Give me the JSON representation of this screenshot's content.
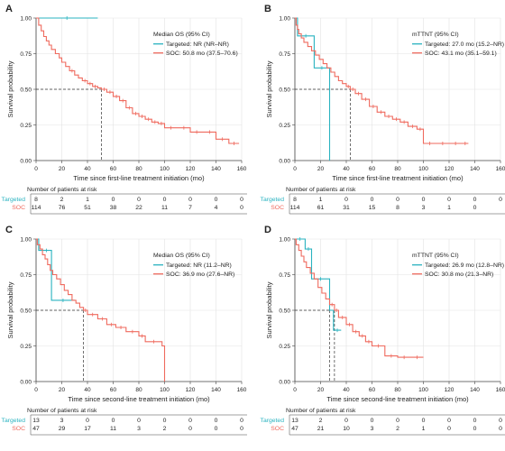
{
  "figure": {
    "risk_table_title": "Number of patients at risk",
    "colors": {
      "targeted": "#2ab3c0",
      "soc": "#ef6a5e",
      "grid": "#e3e3e3",
      "axis": "#444444",
      "text": "#222222",
      "median_line": "#333333"
    }
  },
  "chart_data": [
    {
      "panel": "A",
      "type": "line",
      "subtype": "kaplan-meier",
      "xlabel": "Time since first-line treatment initiation (mo)",
      "ylabel": "Survival probability",
      "xlim": [
        0,
        160
      ],
      "ylim": [
        0,
        1
      ],
      "x_ticks": [
        "0",
        "20",
        "40",
        "60",
        "80",
        "100",
        "120",
        "140",
        "160"
      ],
      "y_ticks": [
        "0.00",
        "0.25",
        "0.50",
        "0.75",
        "1.00"
      ],
      "legend_title": "Median OS (95% CI)",
      "legend_position": "top-right",
      "median_x": [
        50.8
      ],
      "series": [
        {
          "name": "Targeted: NR (NR–NR)",
          "color": "#2ab3c0",
          "x": [
            0,
            48
          ],
          "y": [
            1.0,
            1.0
          ]
        },
        {
          "name": "SOC: 50.8 mo (37.5–70.6)",
          "color": "#ef6a5e",
          "x": [
            0,
            2,
            4,
            6,
            8,
            10,
            12,
            15,
            18,
            20,
            23,
            26,
            30,
            33,
            36,
            40,
            44,
            48,
            50.8,
            55,
            60,
            65,
            70,
            75,
            80,
            85,
            90,
            95,
            100,
            110,
            120,
            130,
            140,
            150,
            158
          ],
          "y": [
            1.0,
            0.95,
            0.91,
            0.87,
            0.84,
            0.81,
            0.78,
            0.75,
            0.72,
            0.69,
            0.66,
            0.63,
            0.6,
            0.58,
            0.56,
            0.54,
            0.52,
            0.51,
            0.5,
            0.48,
            0.45,
            0.42,
            0.37,
            0.33,
            0.31,
            0.29,
            0.27,
            0.26,
            0.23,
            0.23,
            0.2,
            0.2,
            0.15,
            0.12,
            0.12
          ]
        }
      ],
      "risk_table": {
        "rows": [
          {
            "label": "Targeted",
            "color": "#2ab3c0",
            "values": [
              "8",
              "2",
              "1",
              "0",
              "0",
              "0",
              "0",
              "0",
              "0"
            ]
          },
          {
            "label": "SOC",
            "color": "#ef6a5e",
            "values": [
              "114",
              "76",
              "51",
              "38",
              "22",
              "11",
              "7",
              "4",
              "0"
            ]
          }
        ]
      }
    },
    {
      "panel": "B",
      "type": "line",
      "subtype": "kaplan-meier",
      "xlabel": "Time since first-line treatment initiation (mo)",
      "ylabel": "Survival probability",
      "xlim": [
        0,
        160
      ],
      "ylim": [
        0,
        1
      ],
      "x_ticks": [
        "0",
        "20",
        "40",
        "60",
        "80",
        "100",
        "120",
        "140",
        "160"
      ],
      "y_ticks": [
        "0.00",
        "0.25",
        "0.50",
        "0.75",
        "1.00"
      ],
      "legend_title": "mTTNT (95% CI)",
      "legend_position": "top-right",
      "median_x": [
        27.0,
        43.1
      ],
      "series": [
        {
          "name": "Targeted: 27.0 mo (15.2–NR)",
          "color": "#2ab3c0",
          "x": [
            0,
            2,
            15,
            27,
            27
          ],
          "y": [
            1.0,
            0.875,
            0.65,
            0.65,
            0.0
          ]
        },
        {
          "name": "SOC: 43.1 mo (35.1–59.1)",
          "color": "#ef6a5e",
          "x": [
            0,
            1,
            2,
            3,
            5,
            7,
            10,
            13,
            16,
            19,
            22,
            25,
            28,
            31,
            34,
            37,
            40,
            43.1,
            47,
            52,
            58,
            64,
            70,
            76,
            82,
            88,
            95,
            100,
            110,
            120,
            130,
            135
          ],
          "y": [
            1.0,
            0.95,
            0.92,
            0.89,
            0.86,
            0.83,
            0.8,
            0.77,
            0.74,
            0.71,
            0.68,
            0.65,
            0.62,
            0.59,
            0.56,
            0.54,
            0.52,
            0.5,
            0.47,
            0.43,
            0.38,
            0.34,
            0.31,
            0.29,
            0.27,
            0.24,
            0.22,
            0.12,
            0.12,
            0.12,
            0.12,
            0.12
          ]
        }
      ],
      "risk_table": {
        "rows": [
          {
            "label": "Targeted",
            "color": "#2ab3c0",
            "values": [
              "8",
              "1",
              "0",
              "0",
              "0",
              "0",
              "0",
              "0",
              "0"
            ]
          },
          {
            "label": "SOC",
            "color": "#ef6a5e",
            "values": [
              "114",
              "61",
              "31",
              "15",
              "8",
              "3",
              "1",
              "0",
              ""
            ]
          }
        ]
      }
    },
    {
      "panel": "C",
      "type": "line",
      "subtype": "kaplan-meier",
      "xlabel": "Time since second-line treatment initiation (mo)",
      "ylabel": "Survival probability",
      "xlim": [
        0,
        160
      ],
      "ylim": [
        0,
        1
      ],
      "x_ticks": [
        "0",
        "20",
        "40",
        "60",
        "80",
        "100",
        "120",
        "140",
        "160"
      ],
      "y_ticks": [
        "0.00",
        "0.25",
        "0.50",
        "0.75",
        "1.00"
      ],
      "legend_title": "Median OS (95% CI)",
      "legend_position": "top-right",
      "median_x": [
        36.9
      ],
      "series": [
        {
          "name": "Targeted: NR (11.2–NR)",
          "color": "#2ab3c0",
          "x": [
            0,
            2,
            4,
            12,
            30
          ],
          "y": [
            1.0,
            0.92,
            0.92,
            0.57,
            0.57
          ]
        },
        {
          "name": "SOC: 36.9 mo (27.6–NR)",
          "color": "#ef6a5e",
          "x": [
            0,
            1,
            3,
            5,
            7,
            9,
            11,
            13,
            16,
            19,
            22,
            25,
            28,
            31,
            34,
            36.9,
            40,
            48,
            55,
            62,
            70,
            80,
            85,
            98,
            100,
            100
          ],
          "y": [
            1.0,
            0.96,
            0.93,
            0.89,
            0.86,
            0.82,
            0.78,
            0.75,
            0.72,
            0.68,
            0.64,
            0.61,
            0.57,
            0.55,
            0.52,
            0.5,
            0.47,
            0.44,
            0.4,
            0.38,
            0.35,
            0.32,
            0.28,
            0.25,
            0.25,
            0.0
          ]
        }
      ],
      "risk_table": {
        "rows": [
          {
            "label": "Targeted",
            "color": "#2ab3c0",
            "values": [
              "13",
              "3",
              "0",
              "0",
              "0",
              "0",
              "0",
              "0",
              "0"
            ]
          },
          {
            "label": "SOC",
            "color": "#ef6a5e",
            "values": [
              "47",
              "29",
              "17",
              "11",
              "3",
              "2",
              "0",
              "0",
              "0"
            ]
          }
        ]
      }
    },
    {
      "panel": "D",
      "type": "line",
      "subtype": "kaplan-meier",
      "xlabel": "Time since second-line treatment initiation (mo)",
      "ylabel": "Survival probability",
      "xlim": [
        0,
        160
      ],
      "ylim": [
        0,
        1
      ],
      "x_ticks": [
        "0",
        "20",
        "40",
        "60",
        "80",
        "100",
        "120",
        "140",
        "160"
      ],
      "y_ticks": [
        "0.00",
        "0.25",
        "0.50",
        "0.75",
        "1.00"
      ],
      "legend_title": "mTTNT (95% CI)",
      "legend_position": "top-right",
      "median_x": [
        26.9,
        30.8
      ],
      "series": [
        {
          "name": "Targeted: 26.9 mo (12.8–NR)",
          "color": "#2ab3c0",
          "x": [
            0,
            8,
            13,
            27,
            30,
            36
          ],
          "y": [
            1.0,
            0.93,
            0.72,
            0.5,
            0.36,
            0.36
          ]
        },
        {
          "name": "SOC: 30.8 mo (21.3–NR)",
          "color": "#ef6a5e",
          "x": [
            0,
            1,
            3,
            5,
            7,
            9,
            12,
            15,
            18,
            21,
            24,
            27,
            30.8,
            34,
            40,
            45,
            50,
            55,
            60,
            70,
            80,
            90,
            100
          ],
          "y": [
            1.0,
            0.96,
            0.92,
            0.88,
            0.84,
            0.8,
            0.76,
            0.72,
            0.66,
            0.62,
            0.58,
            0.54,
            0.5,
            0.45,
            0.4,
            0.35,
            0.32,
            0.28,
            0.25,
            0.18,
            0.17,
            0.17,
            0.17
          ]
        }
      ],
      "risk_table": {
        "rows": [
          {
            "label": "Targeted",
            "color": "#2ab3c0",
            "values": [
              "13",
              "2",
              "0",
              "0",
              "0",
              "0",
              "0",
              "0",
              "0"
            ]
          },
          {
            "label": "SOC",
            "color": "#ef6a5e",
            "values": [
              "47",
              "21",
              "10",
              "3",
              "2",
              "1",
              "0",
              "0",
              "0"
            ]
          }
        ]
      }
    }
  ]
}
